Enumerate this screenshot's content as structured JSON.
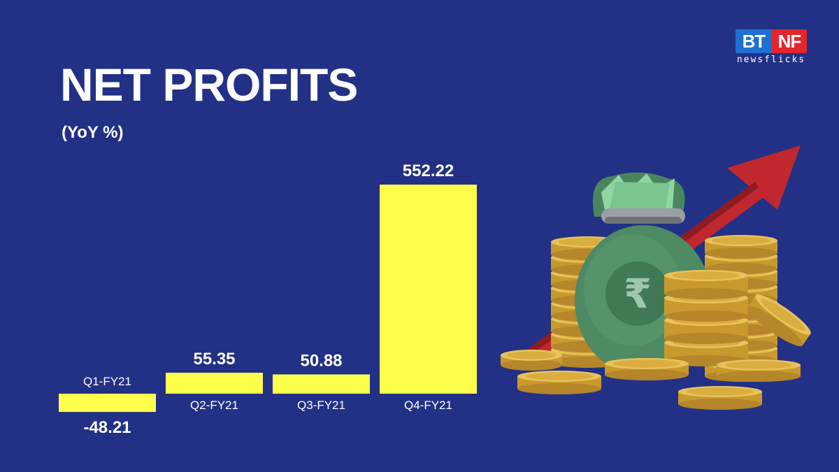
{
  "header": {
    "title": "NET PROFITS",
    "subtitle": "(YoY %)"
  },
  "logo": {
    "left": "BT",
    "right": "NF",
    "tagline": "newsflicks"
  },
  "illustration": {
    "icon": "money-bag-coins-arrow-icon",
    "currency_symbol": "₹"
  },
  "colors": {
    "background": "#223185",
    "bar": "#fefe4d",
    "text": "#ffffff"
  },
  "chart_data": {
    "type": "bar",
    "categories": [
      "Q1-FY21",
      "Q2-FY21",
      "Q3-FY21",
      "Q4-FY21"
    ],
    "values": [
      -48.21,
      55.35,
      50.88,
      552.22
    ],
    "value_labels": [
      "-48.21",
      "55.35",
      "50.88",
      "552.22"
    ],
    "title": "NET PROFITS",
    "subtitle": "(YoY %)",
    "xlabel": "",
    "ylabel": "",
    "grid": false,
    "legend": "none"
  }
}
